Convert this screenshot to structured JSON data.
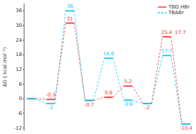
{
  "chart_data": {
    "type": "line",
    "y_label": "ΔG ( kcal.mol⁻¹)",
    "categories": [
      null,
      null,
      null,
      null,
      null,
      null,
      null,
      null,
      null
    ],
    "series": [
      {
        "name": "TBD.HBr",
        "color": "#ff3333",
        "line_style": "solid",
        "values": [
          0,
          -0.3,
          31,
          -0.7,
          0.6,
          5.2,
          -2,
          25.4,
          -10.4
        ],
        "value_labels": [
          null,
          "-0.3",
          "31",
          "-0.7",
          "0.6",
          "5.2",
          "-2",
          "25.4",
          "-10.4"
        ]
      },
      {
        "name": "TBABr",
        "color": "#00ccff",
        "line_style": "dashed",
        "values": [
          0,
          -2,
          36,
          -0.7,
          16.6,
          -0.6,
          -2,
          17.7,
          -10.4
        ],
        "value_labels": [
          null,
          "-2",
          "36",
          null,
          "16.6",
          "-0.6",
          null,
          "17.7",
          null
        ]
      }
    ],
    "annotations": [
      {
        "text": "17.7"
      }
    ],
    "ylim": [
      -13,
      39
    ],
    "yticks": [
      -12,
      -6,
      0,
      6,
      12,
      18,
      24,
      30,
      36
    ],
    "data_labels": true,
    "legend": "upper right",
    "grid": false,
    "tick_labels": "y"
  }
}
